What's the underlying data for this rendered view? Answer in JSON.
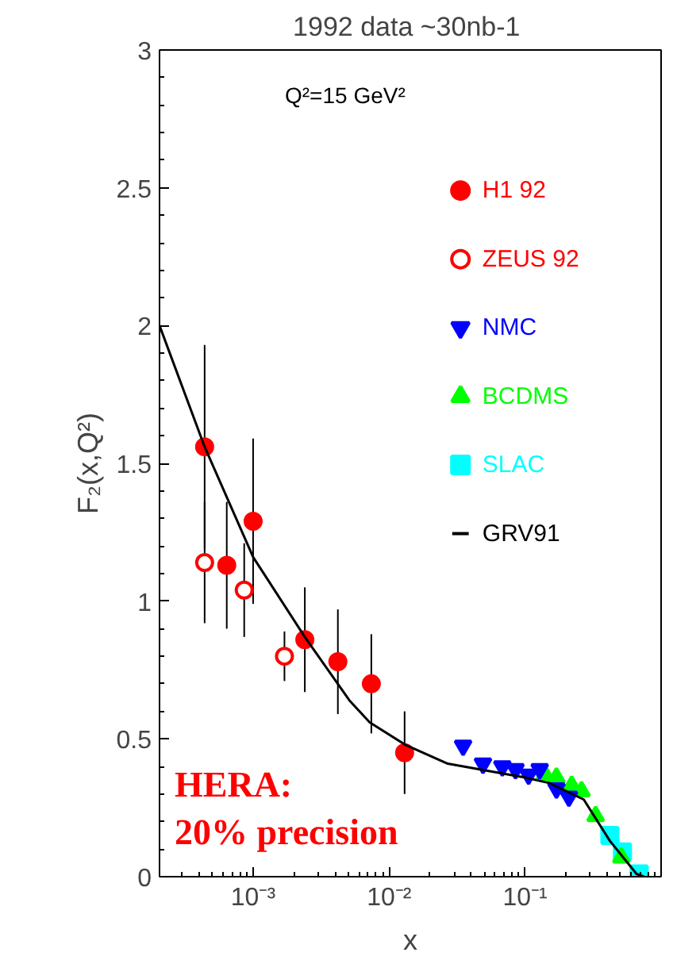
{
  "chart_data": {
    "type": "scatter",
    "title": "1992 data  ~30nb-1",
    "xlabel": "x",
    "ylabel": "F₂(x,Q²)",
    "log": "x",
    "xlim": [
      0.000205,
      1.0
    ],
    "ylim": [
      0,
      3
    ],
    "xticks": [
      {
        "value": 0.001,
        "label": "10⁻³"
      },
      {
        "value": 0.01,
        "label": "10⁻²"
      },
      {
        "value": 0.1,
        "label": "10⁻¹"
      }
    ],
    "yticks": [
      0,
      0.5,
      1,
      1.5,
      2,
      2.5,
      3
    ],
    "grid": false,
    "legend": "top right",
    "annotations": [
      "Q²=15 GeV²",
      "HERA:\n20% precision"
    ],
    "series": [
      {
        "name": "H1 92",
        "color": "#ff0000",
        "marker": "circle",
        "x": [
          0.00044,
          0.00064,
          0.001,
          0.0024,
          0.0042,
          0.0074,
          0.013
        ],
        "values": [
          1.56,
          1.13,
          1.29,
          0.86,
          0.78,
          0.7,
          0.45
        ],
        "errors": [
          0.37,
          0.23,
          0.3,
          0.19,
          0.19,
          0.18,
          0.15
        ]
      },
      {
        "name": "ZEUS 92",
        "color": "#ff0000",
        "marker": "circle",
        "x": [
          0.00044,
          0.00086,
          0.0017
        ],
        "values": [
          1.14,
          1.04,
          0.8
        ],
        "errors": [
          0.22,
          0.17,
          0.09
        ]
      },
      {
        "name": "NMC",
        "color": "#0000ff",
        "marker": "triangle",
        "x": [
          0.035,
          0.049,
          0.068,
          0.085,
          0.106,
          0.128,
          0.17,
          0.21
        ],
        "values": [
          0.475,
          0.41,
          0.4,
          0.39,
          0.37,
          0.39,
          0.32,
          0.29
        ]
      },
      {
        "name": "BCDMS",
        "color": "#00ff00",
        "marker": "triangle",
        "x": [
          0.14,
          0.17,
          0.22,
          0.26,
          0.33,
          0.51
        ],
        "values": [
          0.37,
          0.36,
          0.33,
          0.31,
          0.22,
          0.07
        ]
      },
      {
        "name": "SLAC",
        "color": "#00ffff",
        "marker": "square",
        "x": [
          0.42,
          0.52,
          0.69
        ],
        "values": [
          0.15,
          0.09,
          0.01
        ]
      },
      {
        "name": "GRV91",
        "color": "#000000",
        "type": "line",
        "line_style": "solid",
        "x": [
          0.000205,
          0.00044,
          0.001,
          0.0024,
          0.0051,
          0.0072,
          0.013,
          0.027,
          0.1,
          0.15,
          0.27,
          0.42,
          0.66,
          0.75
        ],
        "values": [
          2.0,
          1.56,
          1.16,
          0.87,
          0.64,
          0.56,
          0.48,
          0.41,
          0.36,
          0.34,
          0.28,
          0.13,
          0.01,
          0.0
        ]
      }
    ]
  }
}
